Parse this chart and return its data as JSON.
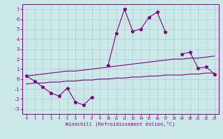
{
  "x": [
    0,
    1,
    2,
    3,
    4,
    5,
    6,
    7,
    8,
    9,
    10,
    11,
    12,
    13,
    14,
    15,
    16,
    17,
    18,
    19,
    20,
    21,
    22,
    23
  ],
  "y_main": [
    0.3,
    -0.2,
    -0.8,
    -1.4,
    -1.7,
    -0.9,
    -2.3,
    -2.6,
    -1.8,
    null,
    1.4,
    4.6,
    7.0,
    4.8,
    5.0,
    6.2,
    6.7,
    4.7,
    null,
    2.5,
    2.7,
    1.1,
    1.2,
    0.5
  ],
  "y_upper": [
    0.3,
    0.4,
    0.5,
    0.6,
    0.7,
    0.8,
    0.8,
    0.9,
    1.0,
    1.1,
    1.2,
    1.3,
    1.4,
    1.5,
    1.6,
    1.7,
    1.8,
    1.9,
    2.0,
    2.0,
    2.1,
    2.1,
    2.2,
    2.3
  ],
  "y_lower": [
    -0.5,
    -0.4,
    -0.4,
    -0.3,
    -0.3,
    -0.2,
    -0.2,
    -0.1,
    -0.1,
    0.0,
    0.0,
    0.1,
    0.1,
    0.2,
    0.2,
    0.3,
    0.3,
    0.4,
    0.4,
    0.4,
    0.5,
    0.5,
    0.6,
    0.6
  ],
  "color": "#800080",
  "bg_color": "#cce8e8",
  "grid_color": "#aacece",
  "xlabel": "Windchill (Refroidissement éolien,°C)",
  "ylim": [
    -3.5,
    7.5
  ],
  "xlim": [
    -0.5,
    23.5
  ],
  "yticks": [
    -3,
    -2,
    -1,
    0,
    1,
    2,
    3,
    4,
    5,
    6,
    7
  ],
  "xticks": [
    0,
    1,
    2,
    3,
    4,
    5,
    6,
    7,
    8,
    9,
    10,
    11,
    12,
    13,
    14,
    15,
    16,
    17,
    18,
    19,
    20,
    21,
    22,
    23
  ]
}
